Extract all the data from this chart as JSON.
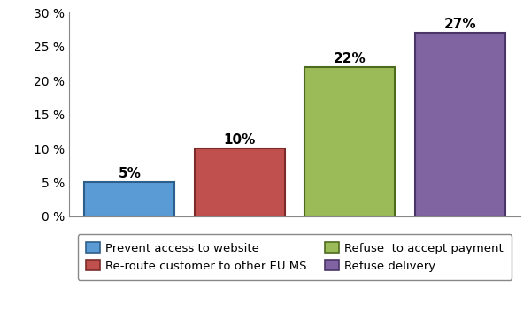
{
  "categories": [
    "Prevent access\nto website",
    "Re-route customer\nto other EU MS",
    "Refuse  to accept\npayment",
    "Refuse delivery"
  ],
  "values": [
    5,
    10,
    22,
    27
  ],
  "bar_colors": [
    "#5B9BD5",
    "#C0504D",
    "#9BBB59",
    "#8064A2"
  ],
  "bar_edge_colors": [
    "#2E5F8A",
    "#7B2C2A",
    "#4D6B1C",
    "#4A3468"
  ],
  "labels": [
    "5%",
    "10%",
    "22%",
    "27%"
  ],
  "legend_labels": [
    "Prevent access to website",
    "Re-route customer to other EU MS",
    "Refuse  to accept payment",
    "Refuse delivery"
  ],
  "ylim": [
    0,
    30
  ],
  "yticks": [
    0,
    5,
    10,
    15,
    20,
    25,
    30
  ],
  "ytick_labels": [
    "0 %",
    "5 %",
    "10 %",
    "15 %",
    "20 %",
    "25 %",
    "30 %"
  ],
  "background_color": "#FFFFFF",
  "label_fontsize": 11,
  "tick_fontsize": 10,
  "legend_fontsize": 9.5
}
